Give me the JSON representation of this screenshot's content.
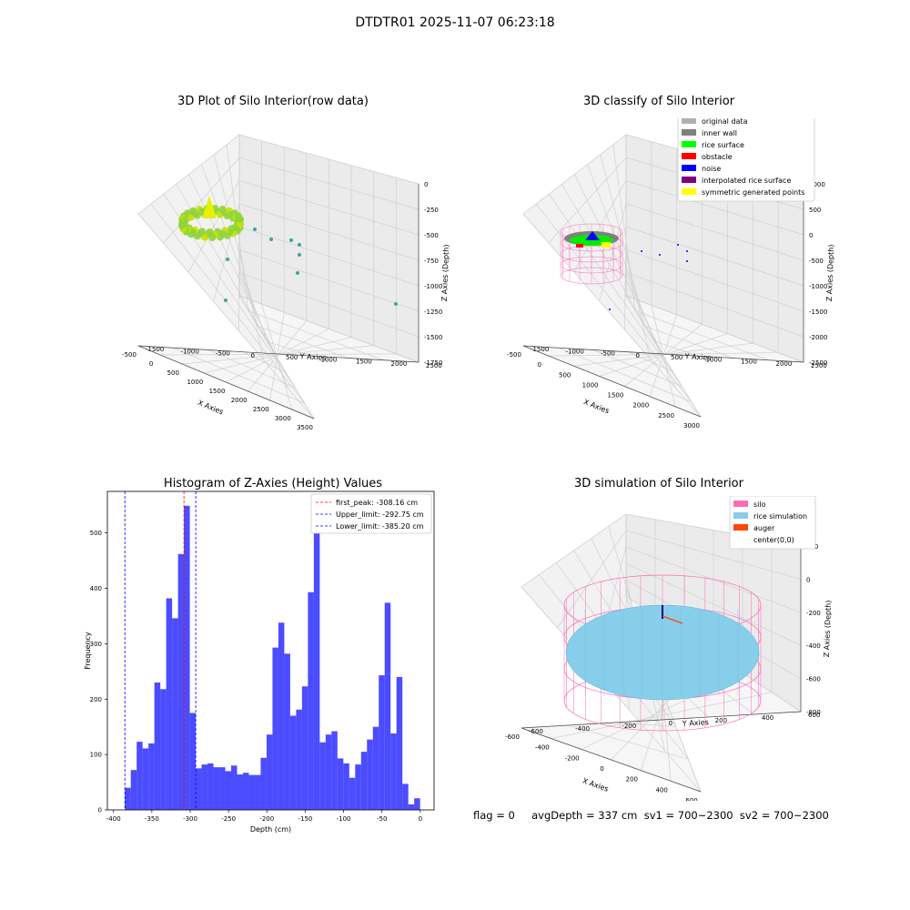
{
  "figure": {
    "suptitle": "DTDTR01 2025-11-07 06:23:18",
    "status_line": "flag = 0     avgDepth = 337 cm  sv1 = 700~2300  sv2 = 700~2300"
  },
  "chart_data": [
    {
      "type": "scatter3d",
      "title": "3D Plot of Silo Interior(row data)",
      "xlabel": "X Axies",
      "ylabel": "Y Axies",
      "zlabel": "Z Axies (Depth)",
      "x_ticks": [
        "-500",
        "0",
        "500",
        "1000",
        "1500",
        "2000",
        "2500",
        "3000",
        "3500"
      ],
      "y_ticks": [
        "-1500",
        "-1000",
        "-500",
        "0",
        "500",
        "1000",
        "1500",
        "2000",
        "2500"
      ],
      "z_ticks": [
        "0",
        "-250",
        "-500",
        "-750",
        "-1000",
        "-1250",
        "-1500",
        "-1750"
      ],
      "grid": true
    },
    {
      "type": "scatter3d",
      "title": "3D classify of Silo Interior",
      "xlabel": "X Axies",
      "ylabel": "Y Axies",
      "zlabel": "Z Axies (Depth)",
      "x_ticks": [
        "-500",
        "0",
        "500",
        "1000",
        "1500",
        "2000",
        "2500",
        "3000"
      ],
      "y_ticks": [
        "-1500",
        "-1000",
        "-500",
        "0",
        "500",
        "1000",
        "1500",
        "2000",
        "2500"
      ],
      "z_ticks": [
        "1000",
        "500",
        "0",
        "-500",
        "-1000",
        "-1500",
        "-2000",
        "-2500"
      ],
      "legend": [
        {
          "label": "original data",
          "color": "#b0b0b0"
        },
        {
          "label": "inner wall",
          "color": "#808080"
        },
        {
          "label": "rice surface",
          "color": "#00ff00"
        },
        {
          "label": "obstacle",
          "color": "#ff0000"
        },
        {
          "label": "noise",
          "color": "#0000ff"
        },
        {
          "label": "interpolated rice surface",
          "color": "#800080"
        },
        {
          "label": "symmetric generated points",
          "color": "#ffff00"
        }
      ],
      "legend_placement": "top-right",
      "grid": true
    },
    {
      "type": "bar",
      "title": "Histogram of Z-Axies (Height) Values",
      "xlabel": "Depth (cm)",
      "ylabel": "Frequency",
      "xlim": [
        -408,
        18
      ],
      "ylim": [
        0,
        575
      ],
      "bin_width": 7.7,
      "x_ticks": [
        -400,
        -350,
        -300,
        -250,
        -200,
        -150,
        -100,
        -50,
        0
      ],
      "y_ticks": [
        0,
        100,
        200,
        300,
        400,
        500
      ],
      "bar_color": "#0000ff",
      "bins": [
        {
          "x": -385.2,
          "h": 40
        },
        {
          "x": -377.5,
          "h": 72
        },
        {
          "x": -369.8,
          "h": 123
        },
        {
          "x": -362.1,
          "h": 111
        },
        {
          "x": -354.4,
          "h": 120
        },
        {
          "x": -346.7,
          "h": 230
        },
        {
          "x": -339.0,
          "h": 218
        },
        {
          "x": -331.3,
          "h": 382
        },
        {
          "x": -323.6,
          "h": 346
        },
        {
          "x": -315.9,
          "h": 462
        },
        {
          "x": -308.2,
          "h": 549
        },
        {
          "x": -300.5,
          "h": 175
        },
        {
          "x": -292.8,
          "h": 75
        },
        {
          "x": -285.1,
          "h": 82
        },
        {
          "x": -277.4,
          "h": 84
        },
        {
          "x": -269.7,
          "h": 77
        },
        {
          "x": -262.0,
          "h": 77
        },
        {
          "x": -254.3,
          "h": 70
        },
        {
          "x": -246.6,
          "h": 80
        },
        {
          "x": -238.9,
          "h": 64
        },
        {
          "x": -231.2,
          "h": 67
        },
        {
          "x": -223.5,
          "h": 63
        },
        {
          "x": -215.8,
          "h": 63
        },
        {
          "x": -208.1,
          "h": 94
        },
        {
          "x": -200.4,
          "h": 136
        },
        {
          "x": -192.7,
          "h": 293
        },
        {
          "x": -185.0,
          "h": 338
        },
        {
          "x": -177.3,
          "h": 282
        },
        {
          "x": -169.6,
          "h": 170
        },
        {
          "x": -161.9,
          "h": 181
        },
        {
          "x": -154.2,
          "h": 223
        },
        {
          "x": -146.5,
          "h": 393
        },
        {
          "x": -138.8,
          "h": 540
        },
        {
          "x": -131.1,
          "h": 122
        },
        {
          "x": -123.4,
          "h": 136
        },
        {
          "x": -115.7,
          "h": 142
        },
        {
          "x": -108.0,
          "h": 93
        },
        {
          "x": -100.3,
          "h": 84
        },
        {
          "x": -92.6,
          "h": 58
        },
        {
          "x": -84.9,
          "h": 82
        },
        {
          "x": -77.2,
          "h": 105
        },
        {
          "x": -69.5,
          "h": 127
        },
        {
          "x": -61.8,
          "h": 150
        },
        {
          "x": -54.1,
          "h": 243
        },
        {
          "x": -46.4,
          "h": 374
        },
        {
          "x": -38.7,
          "h": 138
        },
        {
          "x": -31.0,
          "h": 240
        },
        {
          "x": -23.3,
          "h": 47
        },
        {
          "x": -15.6,
          "h": 10
        },
        {
          "x": -7.9,
          "h": 21
        }
      ],
      "vlines": [
        {
          "x": -308.16,
          "color": "#ff0000",
          "label": "first_peak: -308.16 cm"
        },
        {
          "x": -292.75,
          "color": "#0000ff",
          "label": "Upper_limit: -292.75 cm"
        },
        {
          "x": -385.2,
          "color": "#0000ff",
          "label": "Lower_limit: -385.20 cm"
        }
      ],
      "legend_placement": "top-right"
    },
    {
      "type": "surface3d",
      "title": "3D simulation of Silo Interior",
      "xlabel": "X Axies",
      "ylabel": "Y Axies",
      "zlabel": "Z Axies (Depth)",
      "x_ticks": [
        "-600",
        "-400",
        "-200",
        "0",
        "200",
        "400",
        "600"
      ],
      "y_ticks": [
        "-600",
        "-400",
        "-200",
        "0",
        "200",
        "400",
        "600"
      ],
      "z_ticks": [
        "200",
        "0",
        "-200",
        "-400",
        "-600",
        "-800"
      ],
      "legend": [
        {
          "label": "silo",
          "color": "#ff69b4"
        },
        {
          "label": "rice simulation",
          "color": "#87ceeb"
        },
        {
          "label": "auger",
          "color": "#ff4500"
        },
        {
          "label": "center(0,0)",
          "color": ""
        }
      ],
      "legend_placement": "top-right",
      "grid": true
    }
  ]
}
